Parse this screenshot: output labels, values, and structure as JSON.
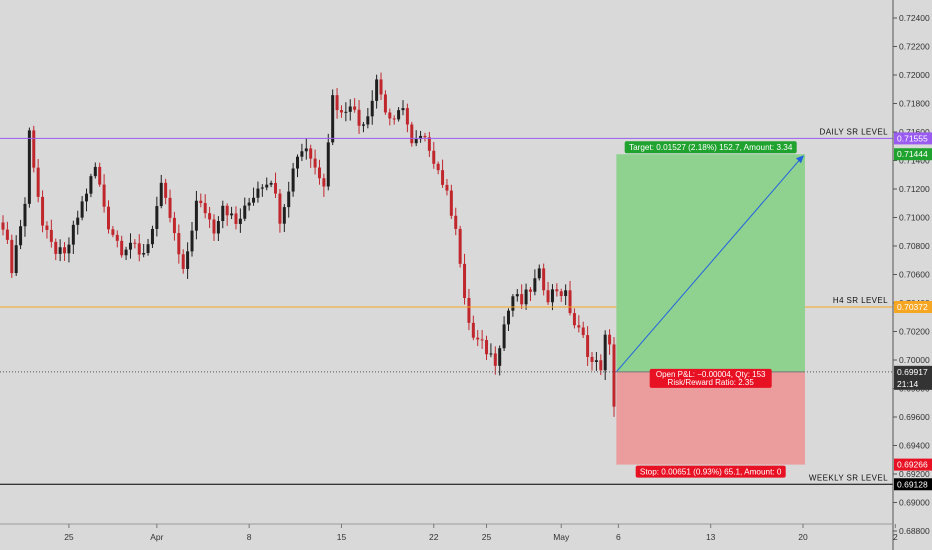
{
  "chart_data": {
    "type": "candlestick",
    "title": "",
    "xlabel": "",
    "ylabel": "",
    "ylim": [
      0.6868,
      0.7254
    ],
    "y_ticks": [
      "0.72400",
      "0.72200",
      "0.72000",
      "0.71800",
      "0.71600",
      "0.71400",
      "0.71200",
      "0.71000",
      "0.70800",
      "0.70600",
      "0.70400",
      "0.70200",
      "0.70000",
      "0.69800",
      "0.69600",
      "0.69400",
      "0.69200",
      "0.69000",
      "0.68800"
    ],
    "x_ticks": [
      {
        "label": "25",
        "bar": 15
      },
      {
        "label": "Apr",
        "bar": 35
      },
      {
        "label": "8",
        "bar": 56
      },
      {
        "label": "15",
        "bar": 77
      },
      {
        "label": "22",
        "bar": 98
      },
      {
        "label": "25",
        "bar": 110
      },
      {
        "label": "May",
        "bar": 127
      },
      {
        "label": "6",
        "bar": 140
      },
      {
        "label": "13",
        "bar": 161
      },
      {
        "label": "20",
        "bar": 182
      },
      {
        "label": "2",
        "bar": 203
      }
    ],
    "bars_visible": 210,
    "colors": {
      "up": "#1f1f1f",
      "down": "#c0272d",
      "background": "#d9d9d9",
      "axis_text": "#333333"
    },
    "levels": [
      {
        "name": "DAILY SR LEVEL",
        "value": 0.71555,
        "label": "0.71555",
        "color": "#9a5cf0"
      },
      {
        "name": "H4 SR LEVEL",
        "value": 0.70372,
        "label": "0.70372",
        "color": "#f5a623"
      },
      {
        "name": "WEEKLY SR LEVEL",
        "value": 0.69128,
        "label": "0.69128",
        "color": "#000000"
      }
    ],
    "current_price": {
      "value": 0.69917,
      "label": "0.69917",
      "countdown": "21:14"
    },
    "position": {
      "entry": 0.69917,
      "target": 0.71444,
      "target_label": "0.71444",
      "stop": 0.69266,
      "stop_label": "0.69266",
      "start_bar": 140,
      "end_bar": 182,
      "target_text": "Target: 0.01527 (2.18%) 152.7, Amount: 3.34",
      "stop_text": "Stop: 0.00651 (0.93%) 65.1, Amount: 0",
      "pnl_text": "Open P&L: −0.00004, Qty: 153",
      "rr_text": "Risk/Reward Ratio: 2.35",
      "profit_color": "#8fd18f",
      "loss_color": "#eb9d9d",
      "target_label_color": "#1fa32e",
      "stop_label_color": "#e81123",
      "arrow_color": "#2262e0"
    },
    "ohlc_keypoints": [
      [
        0,
        0.7096
      ],
      [
        2,
        0.7065
      ],
      [
        5,
        0.711
      ],
      [
        6,
        0.716
      ],
      [
        9,
        0.7094
      ],
      [
        11,
        0.708
      ],
      [
        14,
        0.7072
      ],
      [
        18,
        0.711
      ],
      [
        21,
        0.7135
      ],
      [
        24,
        0.7095
      ],
      [
        27,
        0.7078
      ],
      [
        29,
        0.7083
      ],
      [
        31,
        0.7072
      ],
      [
        33,
        0.7082
      ],
      [
        36,
        0.712
      ],
      [
        38,
        0.71
      ],
      [
        41,
        0.706
      ],
      [
        44,
        0.711
      ],
      [
        46,
        0.7105
      ],
      [
        48,
        0.7092
      ],
      [
        50,
        0.711
      ],
      [
        53,
        0.7095
      ],
      [
        55,
        0.7105
      ],
      [
        58,
        0.7122
      ],
      [
        61,
        0.7128
      ],
      [
        63,
        0.71
      ],
      [
        65,
        0.7122
      ],
      [
        67,
        0.7145
      ],
      [
        69,
        0.715
      ],
      [
        71,
        0.7135
      ],
      [
        73,
        0.7126
      ],
      [
        75,
        0.7185
      ],
      [
        77,
        0.7172
      ],
      [
        79,
        0.7182
      ],
      [
        81,
        0.7165
      ],
      [
        83,
        0.7173
      ],
      [
        85,
        0.7198
      ],
      [
        87,
        0.7175
      ],
      [
        89,
        0.7165
      ],
      [
        91,
        0.718
      ],
      [
        93,
        0.715
      ],
      [
        95,
        0.7155
      ],
      [
        97,
        0.715
      ],
      [
        100,
        0.7125
      ],
      [
        103,
        0.7095
      ],
      [
        105,
        0.704
      ],
      [
        107,
        0.7015
      ],
      [
        109,
        0.701
      ],
      [
        112,
        0.7
      ],
      [
        114,
        0.7025
      ],
      [
        116,
        0.7045
      ],
      [
        118,
        0.704
      ],
      [
        120,
        0.705
      ],
      [
        122,
        0.706
      ],
      [
        124,
        0.7045
      ],
      [
        126,
        0.705
      ],
      [
        128,
        0.7045
      ],
      [
        130,
        0.7025
      ],
      [
        132,
        0.7015
      ],
      [
        134,
        0.6998
      ],
      [
        136,
        0.6996
      ],
      [
        137,
        0.7015
      ],
      [
        138,
        0.7008
      ],
      [
        139,
        0.697
      ],
      [
        140,
        0.699
      ]
    ]
  }
}
